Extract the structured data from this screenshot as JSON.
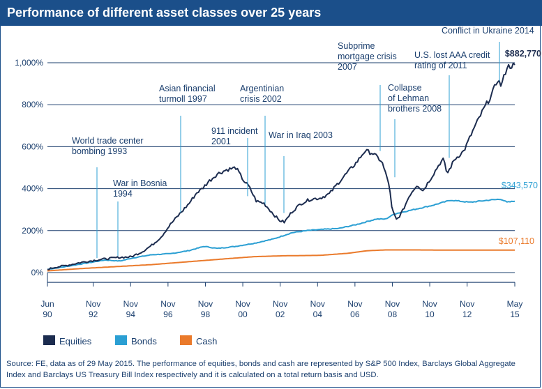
{
  "title": "Performance of different asset classes over 25 years",
  "source_note": "Source: FE, data as of 29 May 2015. The performance of equities, bonds and cash are represented by S&P 500 Index, Barclays Global Aggregate Index and Barclays US Treasury Bill Index respectively and it is calculated on a total return basis and USD.",
  "chart_data": {
    "type": "line",
    "title": "Performance of different asset classes over 25 years",
    "xlabel": "",
    "ylabel": "",
    "xlim": [
      1990.42,
      2015.42
    ],
    "ylim": [
      -10,
      1010
    ],
    "grid": "horizontal",
    "legend_position": "bottom-left",
    "x_ticks": [
      {
        "x": 1990.42,
        "l1": "Jun",
        "l2": "90"
      },
      {
        "x": 1992.87,
        "l1": "Nov",
        "l2": "92"
      },
      {
        "x": 1994.87,
        "l1": "Nov",
        "l2": "94"
      },
      {
        "x": 1996.87,
        "l1": "Nov",
        "l2": "96"
      },
      {
        "x": 1998.87,
        "l1": "Nov",
        "l2": "98"
      },
      {
        "x": 2000.87,
        "l1": "Nov",
        "l2": "00"
      },
      {
        "x": 2002.87,
        "l1": "Nov",
        "l2": "02"
      },
      {
        "x": 2004.87,
        "l1": "Nov",
        "l2": "04"
      },
      {
        "x": 2006.87,
        "l1": "Nov",
        "l2": "06"
      },
      {
        "x": 2008.87,
        "l1": "Nov",
        "l2": "08"
      },
      {
        "x": 2010.87,
        "l1": "Nov",
        "l2": "10"
      },
      {
        "x": 2012.87,
        "l1": "Nov",
        "l2": "12"
      },
      {
        "x": 2015.42,
        "l1": "May",
        "l2": "15"
      }
    ],
    "y_ticks": [
      {
        "value": 0,
        "label": "0%"
      },
      {
        "value": 200,
        "label": "200%"
      },
      {
        "value": 400,
        "label": "400%"
      },
      {
        "value": 600,
        "label": "600%"
      },
      {
        "value": 800,
        "label": "800%"
      },
      {
        "value": 1000,
        "label": "1,000%"
      }
    ],
    "series": [
      {
        "name": "Equities",
        "color": "#1c2c4f",
        "end_label": "$882,770",
        "end_label_color": "#1c2c4f",
        "points": [
          [
            1990.42,
            15
          ],
          [
            1990.8,
            25
          ],
          [
            1991.5,
            35
          ],
          [
            1992.2,
            48
          ],
          [
            1992.9,
            58
          ],
          [
            1993.5,
            65
          ],
          [
            1994.2,
            72
          ],
          [
            1994.9,
            75
          ],
          [
            1995.5,
            100
          ],
          [
            1996.0,
            130
          ],
          [
            1996.5,
            170
          ],
          [
            1997.0,
            230
          ],
          [
            1997.5,
            280
          ],
          [
            1998.0,
            330
          ],
          [
            1998.4,
            380
          ],
          [
            1998.7,
            400
          ],
          [
            1999.0,
            430
          ],
          [
            1999.5,
            470
          ],
          [
            2000.0,
            490
          ],
          [
            2000.5,
            500
          ],
          [
            2000.9,
            440
          ],
          [
            2001.2,
            410
          ],
          [
            2001.6,
            340
          ],
          [
            2002.0,
            330
          ],
          [
            2002.4,
            290
          ],
          [
            2002.8,
            250
          ],
          [
            2003.1,
            240
          ],
          [
            2003.5,
            290
          ],
          [
            2004.0,
            330
          ],
          [
            2004.5,
            350
          ],
          [
            2005.0,
            355
          ],
          [
            2005.5,
            375
          ],
          [
            2006.0,
            430
          ],
          [
            2006.5,
            480
          ],
          [
            2007.0,
            530
          ],
          [
            2007.4,
            580
          ],
          [
            2007.8,
            570
          ],
          [
            2008.3,
            530
          ],
          [
            2008.7,
            420
          ],
          [
            2008.85,
            300
          ],
          [
            2009.1,
            250
          ],
          [
            2009.4,
            290
          ],
          [
            2009.8,
            370
          ],
          [
            2010.2,
            420
          ],
          [
            2010.5,
            390
          ],
          [
            2011.0,
            460
          ],
          [
            2011.4,
            520
          ],
          [
            2011.6,
            540
          ],
          [
            2011.8,
            470
          ],
          [
            2012.2,
            540
          ],
          [
            2012.7,
            580
          ],
          [
            2013.2,
            680
          ],
          [
            2013.7,
            770
          ],
          [
            2014.2,
            850
          ],
          [
            2014.5,
            920
          ],
          [
            2014.7,
            890
          ],
          [
            2015.0,
            980
          ],
          [
            2015.42,
            990
          ]
        ]
      },
      {
        "name": "Bonds",
        "color": "#2b9fd3",
        "end_label": "$343,570",
        "end_label_color": "#2b9fd3",
        "points": [
          [
            1990.42,
            15
          ],
          [
            1991.5,
            30
          ],
          [
            1992.5,
            45
          ],
          [
            1993.5,
            60
          ],
          [
            1994.3,
            55
          ],
          [
            1995.0,
            70
          ],
          [
            1996.0,
            85
          ],
          [
            1997.0,
            90
          ],
          [
            1998.0,
            105
          ],
          [
            1998.8,
            125
          ],
          [
            1999.5,
            115
          ],
          [
            2000.5,
            125
          ],
          [
            2001.5,
            140
          ],
          [
            2002.5,
            160
          ],
          [
            2003.5,
            190
          ],
          [
            2004.3,
            200
          ],
          [
            2005.0,
            205
          ],
          [
            2006.0,
            210
          ],
          [
            2007.0,
            230
          ],
          [
            2008.0,
            255
          ],
          [
            2008.5,
            255
          ],
          [
            2009.0,
            280
          ],
          [
            2010.0,
            300
          ],
          [
            2011.0,
            320
          ],
          [
            2012.0,
            345
          ],
          [
            2013.0,
            335
          ],
          [
            2014.0,
            345
          ],
          [
            2014.7,
            350
          ],
          [
            2015.0,
            335
          ],
          [
            2015.42,
            340
          ]
        ]
      },
      {
        "name": "Cash",
        "color": "#ea7a2b",
        "end_label": "$107,110",
        "end_label_color": "#ea7a2b",
        "points": [
          [
            1990.42,
            8
          ],
          [
            1992.0,
            18
          ],
          [
            1994.0,
            28
          ],
          [
            1996.0,
            38
          ],
          [
            1998.0,
            52
          ],
          [
            2000.0,
            66
          ],
          [
            2001.5,
            76
          ],
          [
            2003.0,
            80
          ],
          [
            2005.0,
            82
          ],
          [
            2006.5,
            92
          ],
          [
            2007.5,
            104
          ],
          [
            2008.5,
            108
          ],
          [
            2010.0,
            108
          ],
          [
            2012.0,
            107
          ],
          [
            2015.42,
            107
          ]
        ]
      }
    ],
    "annotations": [
      {
        "lines": [
          "World trade center",
          "bombing 1993"
        ],
        "x": 1993.3,
        "color": "#1b3f6e"
      },
      {
        "lines": [
          "War in Bosnia",
          "1994"
        ],
        "x": 1994.3,
        "color": "#1b3f6e"
      },
      {
        "lines": [
          "Asian financial",
          "turmoll 1997"
        ],
        "x": 1997.5,
        "color": "#1b3f6e"
      },
      {
        "lines": [
          "911 incident",
          "2001"
        ],
        "x": 2001.5,
        "color": "#1b3f6e"
      },
      {
        "lines": [
          "Argentinian",
          "crisis 2002"
        ],
        "x": 2002.1,
        "color": "#1b3f6e"
      },
      {
        "lines": [
          "War in Iraq 2003"
        ],
        "x": 2003.4,
        "color": "#1b3f6e"
      },
      {
        "lines": [
          "Subprime",
          "mortgage crisis",
          "2007"
        ],
        "x": 2007.7,
        "color": "#1b3f6e"
      },
      {
        "lines": [
          "Collapse",
          "of Lehman",
          "brothers 2008"
        ],
        "x": 2008.6,
        "color": "#1b3f6e"
      },
      {
        "lines": [
          "U.S. lost AAA credit",
          "rating of 2011"
        ],
        "x": 2011.6,
        "color": "#1b3f6e"
      },
      {
        "lines": [
          "Conflict in Ukraine 2014"
        ],
        "x": 2014.6,
        "color": "#1b3f6e"
      }
    ]
  }
}
